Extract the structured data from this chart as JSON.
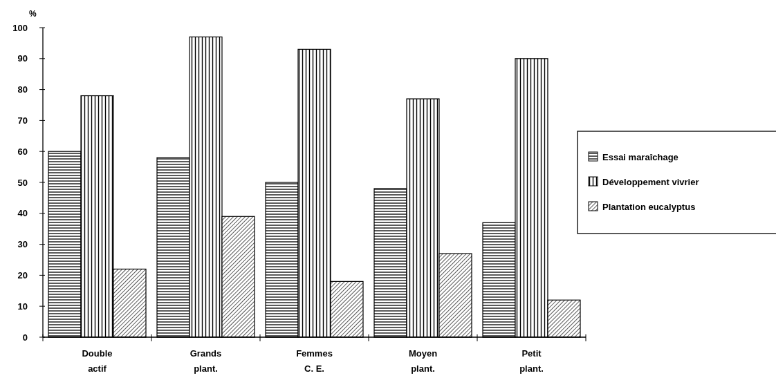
{
  "chart_data": {
    "type": "bar",
    "ylabel": "%",
    "categories": [
      "Double actif",
      "Grands plant.",
      "Femmes C. E.",
      "Moyen plant.",
      "Petit plant."
    ],
    "series": [
      {
        "name": "Essai maraîchage",
        "color": "#000000",
        "values": [
          60,
          58,
          50,
          48,
          37
        ]
      },
      {
        "name": "Développement vivrier",
        "color": "#000000",
        "values": [
          78,
          97,
          93,
          77,
          90
        ]
      },
      {
        "name": "Plantation eucalyptus",
        "color": "#000000",
        "values": [
          22,
          39,
          18,
          27,
          12
        ]
      }
    ],
    "ylim": [
      0,
      100
    ],
    "yticks": [
      0,
      10,
      20,
      30,
      40,
      50,
      60,
      70,
      80,
      90,
      100
    ],
    "grid": false,
    "legend": "right"
  }
}
